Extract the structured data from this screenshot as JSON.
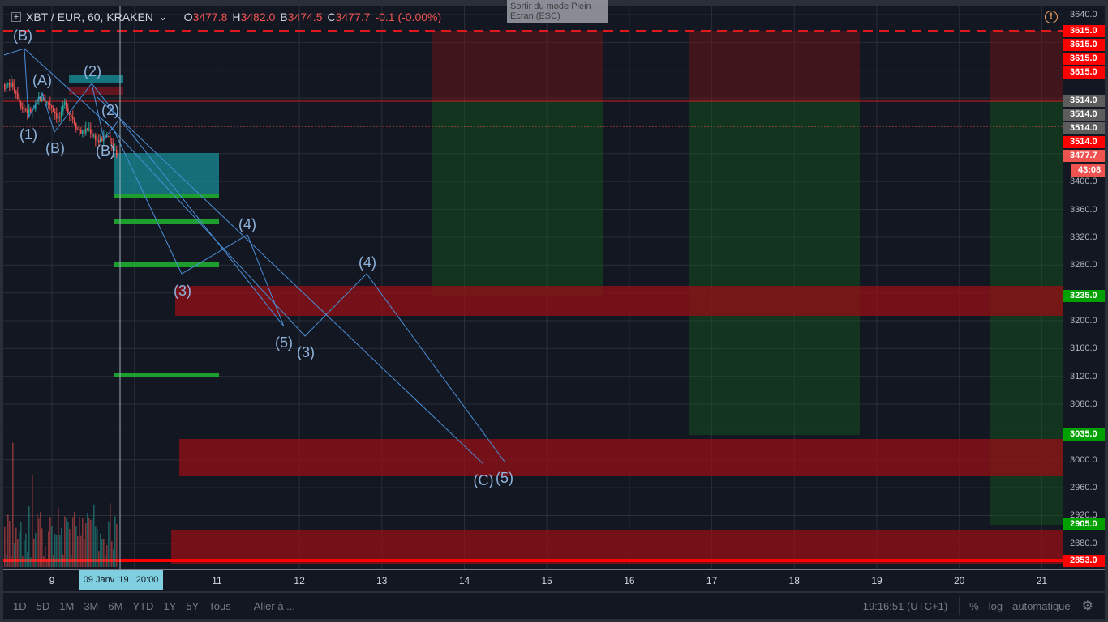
{
  "header": {
    "add_icon": "plus-square-icon",
    "symbol": "XBT / EUR, 60, KRAKEN",
    "o_label": "O",
    "o": "3477.8",
    "h_label": "H",
    "h": "3482.0",
    "b_label": "B",
    "b": "3474.5",
    "c_label": "C",
    "c": "3477.7",
    "change": "-0.1 (-0.00%)"
  },
  "tooltip": "Sortir du mode Plein Écran (ESC)",
  "alert_icon": "exclamation-circle-icon",
  "price_axis": {
    "ticks": [
      "3640.0",
      "3400.0",
      "3360.0",
      "3320.0",
      "3280.0",
      "3200.0",
      "3160.0",
      "3120.0",
      "3080.0",
      "3000.0",
      "2960.0",
      "2920.0",
      "2880.0"
    ],
    "labels": [
      {
        "text": "3615.0",
        "color": "#ff0000"
      },
      {
        "text": "3615.0",
        "color": "#ff0000"
      },
      {
        "text": "3615.0",
        "color": "#ff0000"
      },
      {
        "text": "3615.0",
        "color": "#ff0000"
      },
      {
        "text": "3514.0",
        "color": "#5d5d5d"
      },
      {
        "text": "3514.0",
        "color": "#5d5d5d"
      },
      {
        "text": "3514.0",
        "color": "#5d5d5d"
      },
      {
        "text": "3514.0",
        "color": "#ff0000"
      },
      {
        "text": "3477.7",
        "color": "#ef5350"
      },
      {
        "text": "43:08",
        "color": "#ef5350"
      },
      {
        "text": "3235.0",
        "color": "#00a000"
      },
      {
        "text": "3035.0",
        "color": "#00a000"
      },
      {
        "text": "2905.0",
        "color": "#00a000"
      },
      {
        "text": "2853.0",
        "color": "#ff0000"
      }
    ]
  },
  "time_axis": {
    "ticks": [
      "9",
      "11",
      "12",
      "13",
      "14",
      "15",
      "16",
      "17",
      "18",
      "19",
      "20",
      "21"
    ],
    "crosshair_label": "09 Janv '19   20:00"
  },
  "waves": [
    "(B)",
    "(A)",
    "(2)",
    "(2)",
    "(1)",
    "(B)",
    "(B)",
    "(3)",
    "(4)",
    "(5)",
    "(3)",
    "(4)",
    "(C)",
    "(5)"
  ],
  "toolbar": {
    "ranges": [
      "1D",
      "5D",
      "1M",
      "3M",
      "6M",
      "YTD",
      "1Y",
      "5Y",
      "Tous"
    ],
    "goto": "Aller à ...",
    "clock": "19:16:51 (UTC+1)",
    "percent": "%",
    "log": "log",
    "auto": "automatique",
    "settings_icon": "gear-icon"
  },
  "colors": {
    "up": "#26a69a",
    "down": "#ef5350",
    "bg": "#131722",
    "wave": "#5b9bd5"
  }
}
